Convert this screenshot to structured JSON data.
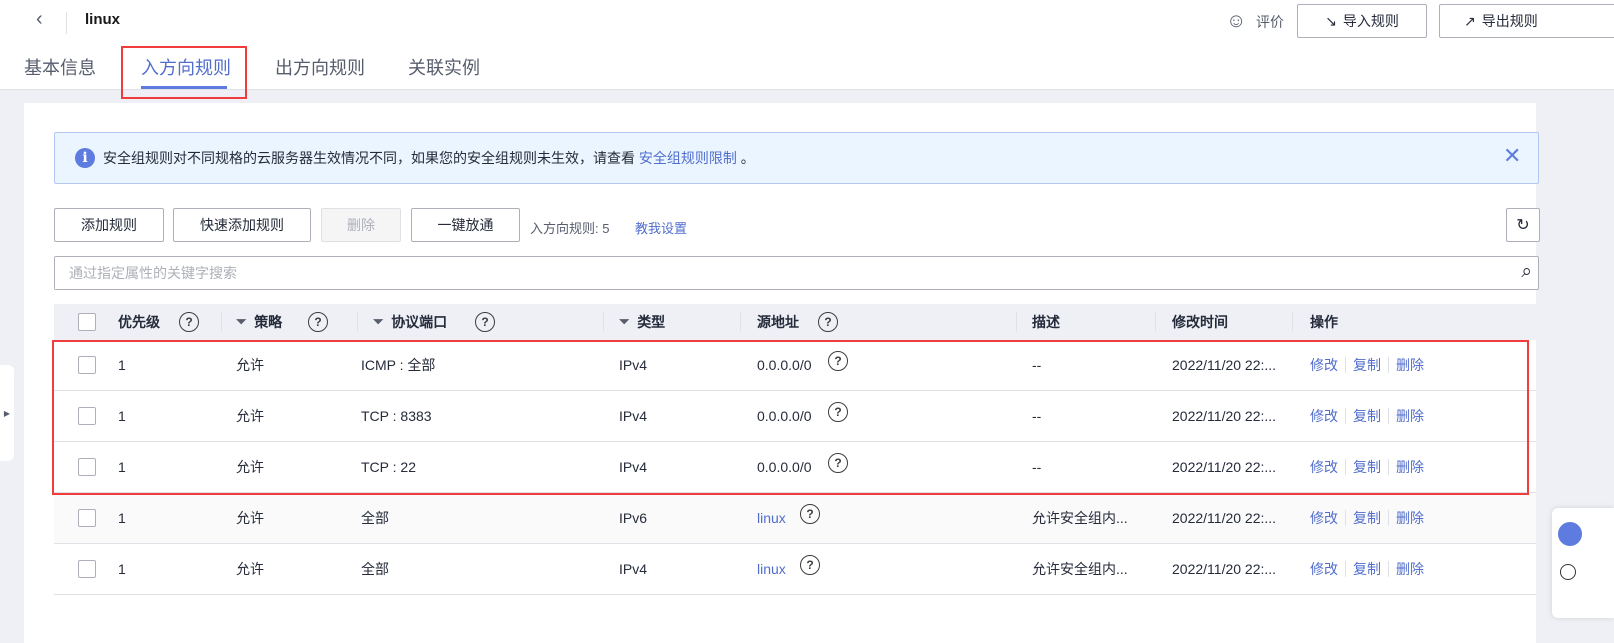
{
  "header": {
    "title": "linux",
    "feedback_label": "评价",
    "import_label": "导入规则",
    "export_label": "导出规则"
  },
  "tabs": [
    {
      "label": "基本信息"
    },
    {
      "label": "入方向规则",
      "active": true
    },
    {
      "label": "出方向规则"
    },
    {
      "label": "关联实例"
    }
  ],
  "alert": {
    "text": "安全组规则对不同规格的云服务器生效情况不同，如果您的安全组规则未生效，请查看 ",
    "link": "安全组规则限制",
    "suffix": " 。"
  },
  "toolbar": {
    "add": "添加规则",
    "quick_add": "快速添加规则",
    "delete": "删除",
    "one_click": "一键放通",
    "count_label": "入方向规则: 5",
    "help_link": "教我设置"
  },
  "search": {
    "placeholder": "通过指定属性的关键字搜索",
    "value": ""
  },
  "table": {
    "headers": {
      "priority": "优先级",
      "policy": "策略",
      "protocol": "协议端口",
      "type": "类型",
      "source": "源地址",
      "desc": "描述",
      "modified": "修改时间",
      "ops": "操作"
    },
    "op_labels": {
      "edit": "修改",
      "copy": "复制",
      "delete": "删除"
    },
    "rows": [
      {
        "priority": "1",
        "policy": "允许",
        "protocol": "ICMP : 全部",
        "type": "IPv4",
        "source": "0.0.0.0/0",
        "source_link": false,
        "desc": "--",
        "modified": "2022/11/20 22:..."
      },
      {
        "priority": "1",
        "policy": "允许",
        "protocol": "TCP : 8383",
        "type": "IPv4",
        "source": "0.0.0.0/0",
        "source_link": false,
        "desc": "--",
        "modified": "2022/11/20 22:..."
      },
      {
        "priority": "1",
        "policy": "允许",
        "protocol": "TCP : 22",
        "type": "IPv4",
        "source": "0.0.0.0/0",
        "source_link": false,
        "desc": "--",
        "modified": "2022/11/20 22:..."
      },
      {
        "priority": "1",
        "policy": "允许",
        "protocol": "全部",
        "type": "IPv6",
        "source": "linux",
        "source_link": true,
        "desc": "允许安全组内...",
        "modified": "2022/11/20 22:..."
      },
      {
        "priority": "1",
        "policy": "允许",
        "protocol": "全部",
        "type": "IPv4",
        "source": "linux",
        "source_link": true,
        "desc": "允许安全组内...",
        "modified": "2022/11/20 22:..."
      }
    ]
  },
  "colors": {
    "accent": "#526ecc",
    "highlight": "#f03c3c"
  }
}
